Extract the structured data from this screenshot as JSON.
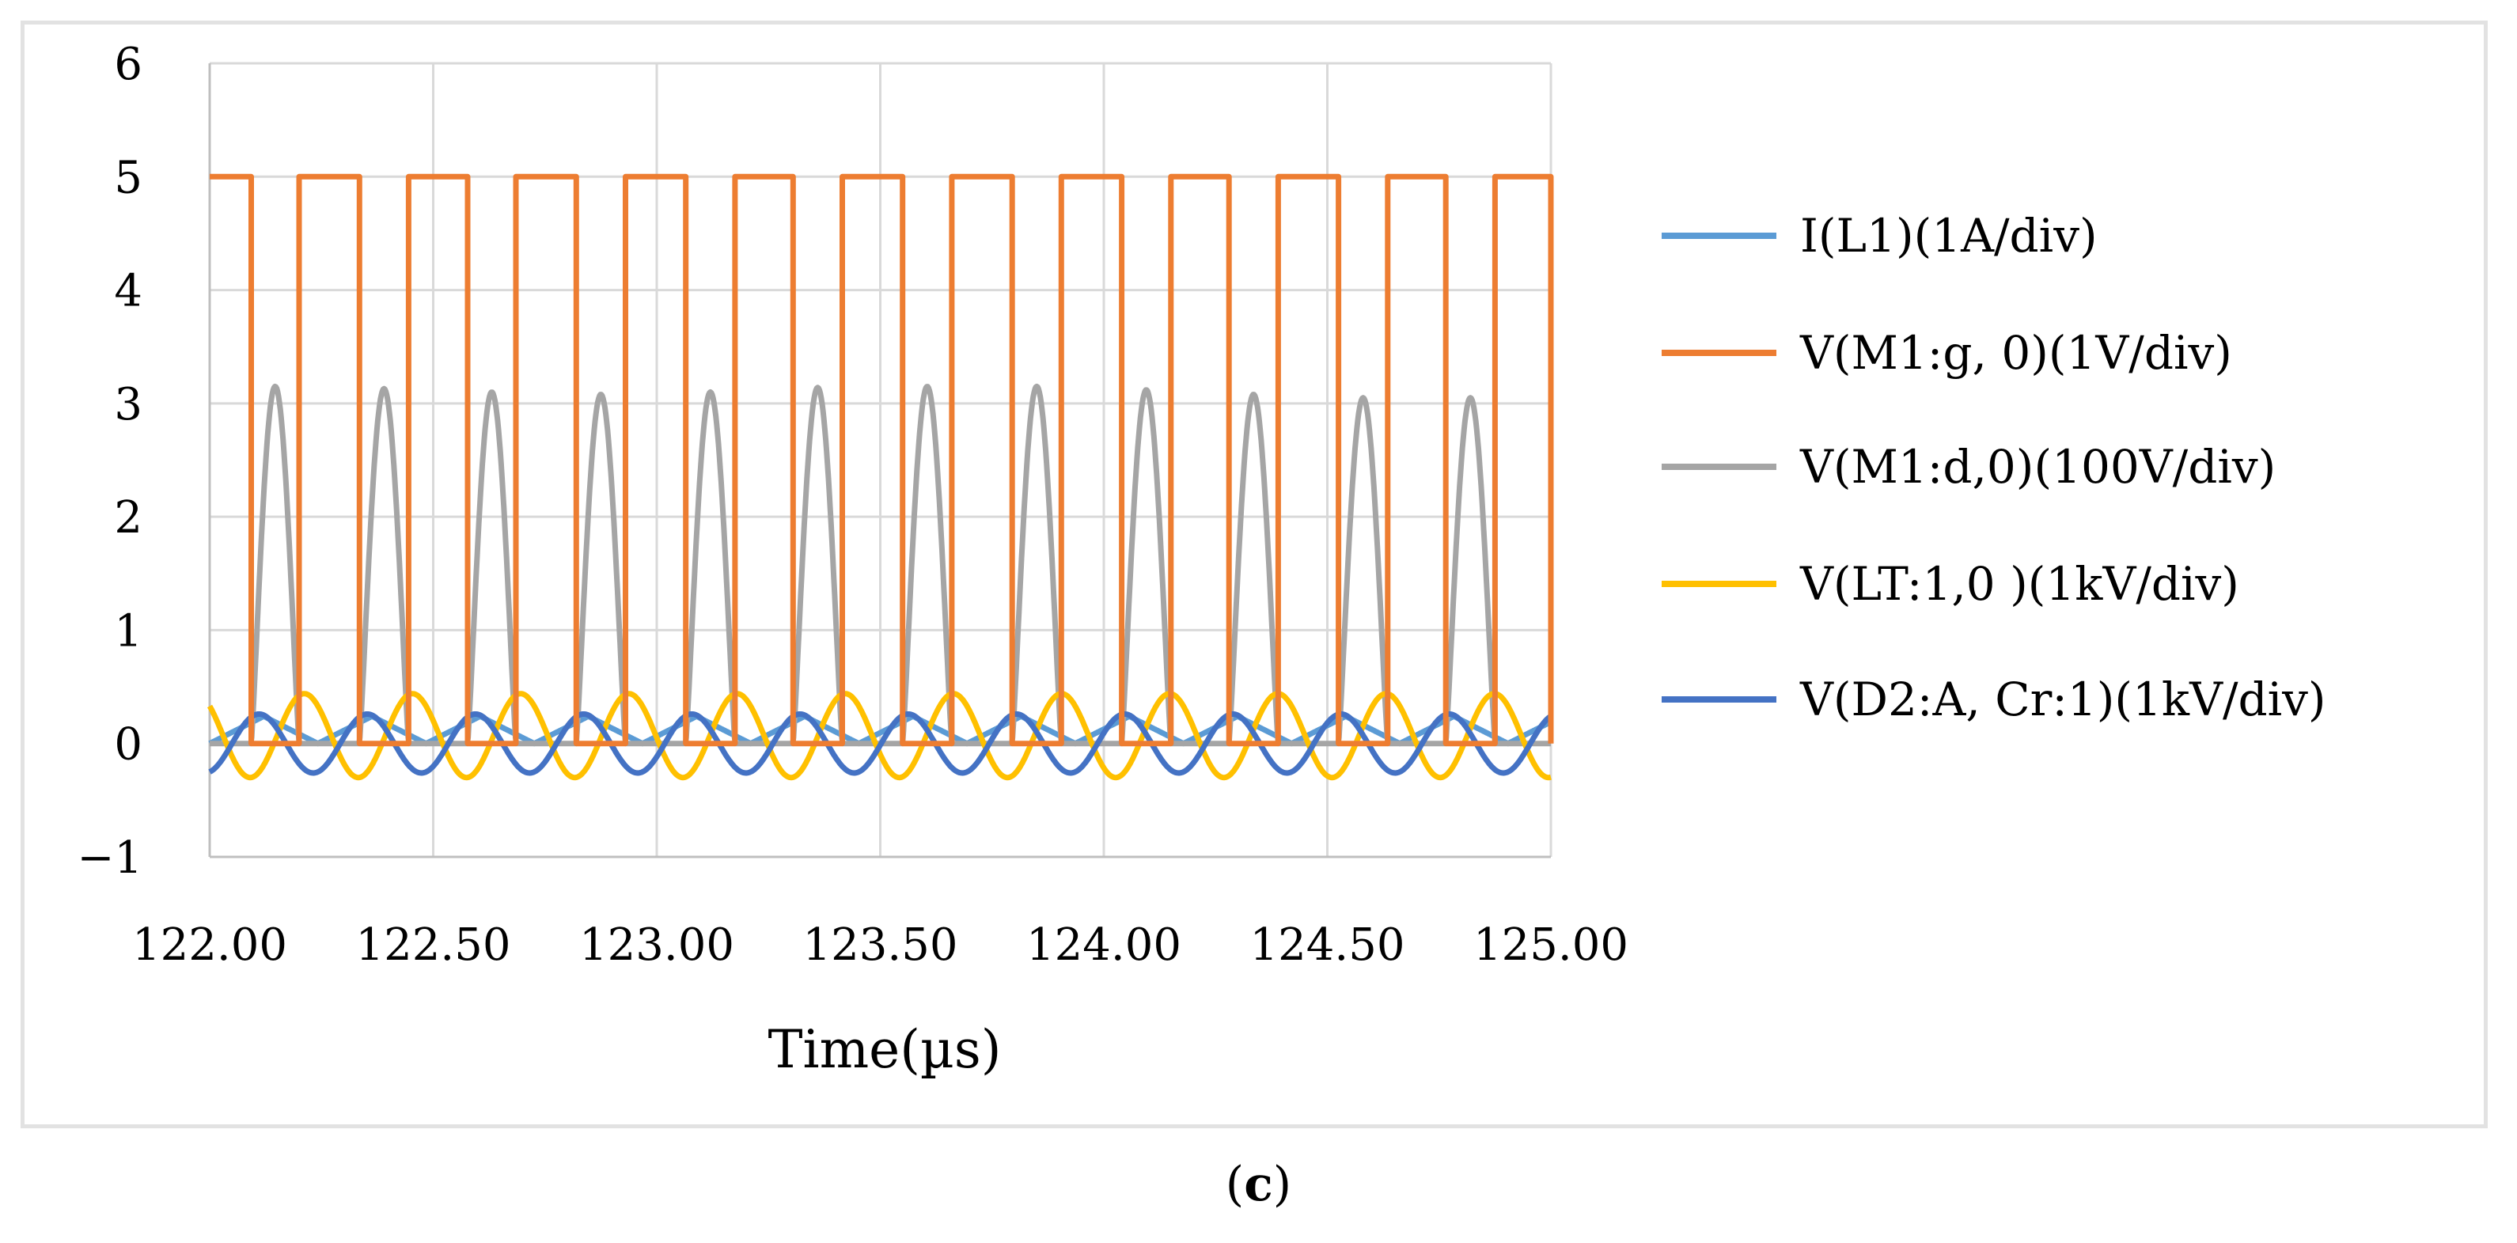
{
  "chart_data": {
    "type": "line",
    "xlabel": "Time(µs)",
    "ylabel": "",
    "xlim": [
      122.0,
      125.0
    ],
    "ylim": [
      -1,
      6
    ],
    "x_ticks": [
      122.0,
      122.5,
      123.0,
      123.5,
      124.0,
      124.5,
      125.0
    ],
    "x_tick_labels": [
      "122.00",
      "122.50",
      "123.00",
      "123.50",
      "124.00",
      "124.50",
      "125.00"
    ],
    "y_ticks": [
      -1,
      0,
      1,
      2,
      3,
      4,
      5,
      6
    ],
    "y_tick_labels": [
      "−1",
      "0",
      "1",
      "2",
      "3",
      "4",
      "5",
      "6"
    ],
    "grid": true,
    "legend_position": "right",
    "switching_period_us": 0.242,
    "gate_high_fraction": 0.43,
    "series": [
      {
        "name": "I(L1)(1A/div)",
        "color": "#5b9bd5",
        "waveform": "triangle",
        "amplitude": 0.12,
        "offset": 0.12
      },
      {
        "name": "V(M1:g, 0)(1V/div)",
        "color": "#ed7d31",
        "waveform": "pulse",
        "high": 5,
        "low": 0,
        "rising_edges_us": [
          122.2,
          122.445,
          122.685,
          122.93,
          123.175,
          123.415,
          123.66,
          123.905,
          124.15,
          124.39,
          124.635,
          124.875
        ],
        "falling_edges_us": [
          122.093,
          122.335,
          122.577,
          122.82,
          123.065,
          123.305,
          123.55,
          123.795,
          124.04,
          124.28,
          124.525,
          124.765,
          125.0
        ]
      },
      {
        "name": "V(M1:d,0)(100V/div)",
        "color": "#a5a5a5",
        "waveform": "resonant-pulse",
        "peaks": [
          3.15,
          3.13,
          3.1,
          3.08,
          3.1,
          3.14,
          3.15,
          3.15,
          3.12,
          3.08,
          3.05,
          3.05
        ]
      },
      {
        "name": "V(LT:1,0 )(1kV/div)",
        "color": "#ffc000",
        "waveform": "sine",
        "amplitude": 0.37,
        "offset": 0.07
      },
      {
        "name": "V(D2:A, Cr:1)(1kV/div)",
        "color": "#4472c4",
        "waveform": "sine",
        "amplitude": 0.26,
        "offset": 0.0
      }
    ]
  },
  "caption": {
    "open": "(",
    "letter": "c",
    "close": ")"
  }
}
